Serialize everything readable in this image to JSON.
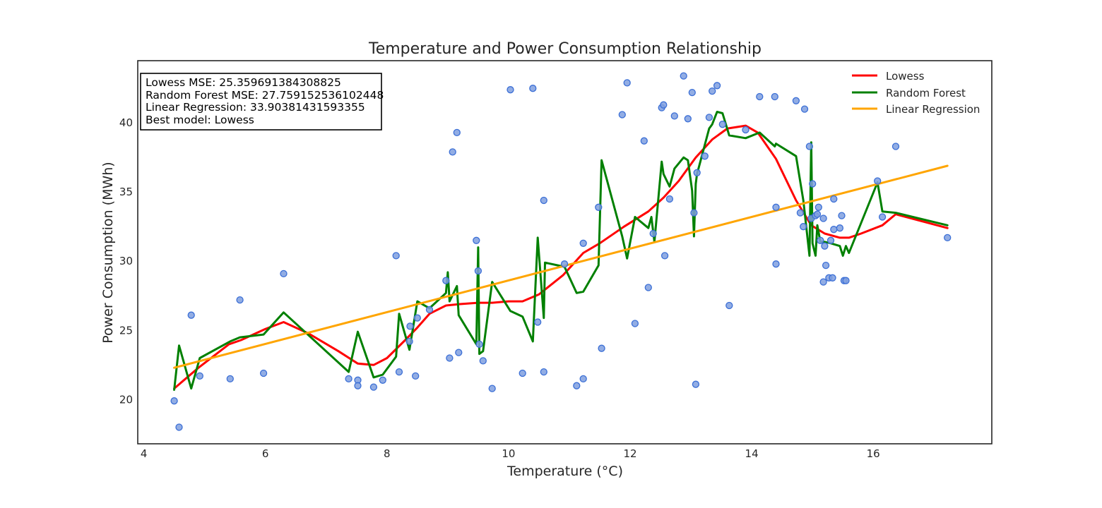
{
  "chart_data": {
    "type": "scatter",
    "title": "Temperature and Power Consumption Relationship",
    "xlabel": "Temperature (°C)",
    "ylabel": "Power Consumption (MWh)",
    "xlim": [
      3.9,
      17.95
    ],
    "ylim": [
      16.8,
      44.5
    ],
    "x_ticks": [
      4,
      6,
      8,
      10,
      12,
      14,
      16
    ],
    "y_ticks": [
      20,
      25,
      30,
      35,
      40
    ],
    "grid": false,
    "legend_position": "top-right",
    "stats_box": [
      "Lowess MSE: 25.359691384308825",
      "Random Forest MSE: 27.759152536102448",
      "Linear Regression: 33.90381431593355",
      "Best model: Lowess"
    ],
    "scatter": {
      "color": "#7f9fdf",
      "edge_color": "#3b6fd6",
      "points": [
        [
          4.5,
          19.9
        ],
        [
          4.58,
          18.0
        ],
        [
          4.78,
          26.1
        ],
        [
          4.92,
          21.7
        ],
        [
          5.42,
          21.5
        ],
        [
          5.58,
          27.2
        ],
        [
          5.97,
          21.9
        ],
        [
          6.3,
          29.1
        ],
        [
          7.37,
          21.5
        ],
        [
          7.52,
          21.4
        ],
        [
          7.52,
          21.0
        ],
        [
          7.78,
          20.9
        ],
        [
          7.93,
          21.4
        ],
        [
          8.15,
          30.4
        ],
        [
          8.2,
          22.0
        ],
        [
          8.37,
          24.2
        ],
        [
          8.38,
          25.3
        ],
        [
          8.47,
          21.7
        ],
        [
          8.5,
          25.9
        ],
        [
          8.7,
          26.5
        ],
        [
          8.97,
          28.6
        ],
        [
          9.03,
          23.0
        ],
        [
          9.08,
          37.9
        ],
        [
          9.15,
          39.3
        ],
        [
          9.18,
          23.4
        ],
        [
          9.47,
          31.5
        ],
        [
          9.5,
          29.3
        ],
        [
          9.52,
          24.0
        ],
        [
          9.58,
          22.8
        ],
        [
          9.73,
          20.8
        ],
        [
          10.03,
          42.4
        ],
        [
          10.23,
          21.9
        ],
        [
          10.4,
          42.5
        ],
        [
          10.48,
          25.6
        ],
        [
          10.58,
          34.4
        ],
        [
          10.58,
          22.0
        ],
        [
          10.92,
          29.8
        ],
        [
          11.12,
          21.0
        ],
        [
          11.23,
          21.5
        ],
        [
          11.23,
          31.3
        ],
        [
          11.48,
          33.9
        ],
        [
          11.53,
          23.7
        ],
        [
          11.87,
          40.6
        ],
        [
          11.95,
          42.9
        ],
        [
          12.08,
          25.5
        ],
        [
          12.23,
          38.7
        ],
        [
          12.3,
          28.1
        ],
        [
          12.38,
          32.0
        ],
        [
          12.52,
          41.1
        ],
        [
          12.55,
          41.3
        ],
        [
          12.57,
          30.4
        ],
        [
          12.65,
          34.5
        ],
        [
          12.73,
          40.5
        ],
        [
          12.88,
          43.4
        ],
        [
          12.95,
          40.3
        ],
        [
          13.02,
          42.2
        ],
        [
          13.05,
          33.5
        ],
        [
          13.08,
          21.1
        ],
        [
          13.1,
          36.4
        ],
        [
          13.23,
          37.6
        ],
        [
          13.3,
          40.4
        ],
        [
          13.35,
          42.3
        ],
        [
          13.43,
          42.7
        ],
        [
          13.52,
          39.9
        ],
        [
          13.63,
          26.8
        ],
        [
          13.9,
          39.5
        ],
        [
          14.13,
          41.9
        ],
        [
          14.38,
          41.9
        ],
        [
          14.4,
          29.8
        ],
        [
          14.4,
          33.9
        ],
        [
          14.73,
          41.6
        ],
        [
          14.8,
          33.5
        ],
        [
          14.85,
          32.5
        ],
        [
          14.87,
          41.0
        ],
        [
          14.95,
          38.3
        ],
        [
          14.98,
          33.1
        ],
        [
          15.0,
          35.6
        ],
        [
          15.05,
          33.3
        ],
        [
          15.08,
          33.4
        ],
        [
          15.1,
          33.9
        ],
        [
          15.13,
          31.5
        ],
        [
          15.18,
          33.1
        ],
        [
          15.18,
          28.5
        ],
        [
          15.2,
          31.1
        ],
        [
          15.22,
          29.7
        ],
        [
          15.27,
          28.8
        ],
        [
          15.3,
          31.5
        ],
        [
          15.33,
          28.8
        ],
        [
          15.35,
          34.5
        ],
        [
          15.35,
          32.3
        ],
        [
          15.45,
          32.4
        ],
        [
          15.48,
          33.3
        ],
        [
          15.52,
          28.6
        ],
        [
          15.55,
          28.6
        ],
        [
          16.07,
          35.8
        ],
        [
          16.15,
          33.2
        ],
        [
          16.37,
          38.3
        ],
        [
          17.22,
          31.7
        ]
      ]
    },
    "series": [
      {
        "name": "Lowess",
        "color": "#ff0000",
        "x": [
          4.5,
          4.9,
          5.4,
          5.6,
          6.0,
          6.3,
          6.7,
          7.2,
          7.52,
          7.78,
          8.0,
          8.3,
          8.5,
          8.7,
          8.97,
          9.2,
          9.5,
          9.73,
          10.0,
          10.23,
          10.5,
          10.9,
          11.23,
          11.5,
          11.9,
          12.3,
          12.55,
          12.8,
          13.08,
          13.35,
          13.6,
          13.9,
          14.1,
          14.4,
          14.73,
          14.98,
          15.2,
          15.45,
          15.6,
          15.8,
          16.15,
          16.37,
          17.22
        ],
        "y": [
          20.8,
          22.3,
          24.0,
          24.3,
          25.1,
          25.6,
          24.8,
          23.5,
          22.6,
          22.5,
          23.0,
          24.3,
          25.2,
          26.2,
          26.8,
          26.9,
          27.0,
          27.0,
          27.1,
          27.1,
          27.6,
          29.0,
          30.6,
          31.3,
          32.5,
          33.6,
          34.6,
          35.8,
          37.5,
          38.8,
          39.6,
          39.8,
          39.3,
          37.4,
          34.4,
          32.6,
          32.0,
          31.7,
          31.7,
          32.0,
          32.6,
          33.4,
          32.4
        ]
      },
      {
        "name": "Random Forest",
        "color": "#008000",
        "x": [
          4.5,
          4.58,
          4.78,
          4.92,
          5.42,
          5.58,
          5.97,
          6.3,
          7.37,
          7.52,
          7.78,
          7.93,
          8.15,
          8.2,
          8.37,
          8.5,
          8.7,
          8.97,
          9.0,
          9.03,
          9.15,
          9.18,
          9.47,
          9.5,
          9.52,
          9.58,
          9.73,
          10.03,
          10.23,
          10.4,
          10.48,
          10.58,
          10.6,
          10.92,
          11.12,
          11.23,
          11.48,
          11.53,
          11.87,
          11.95,
          12.08,
          12.3,
          12.35,
          12.4,
          12.52,
          12.55,
          12.65,
          12.73,
          12.88,
          12.95,
          13.02,
          13.05,
          13.08,
          13.1,
          13.3,
          13.35,
          13.43,
          13.52,
          13.63,
          13.9,
          14.13,
          14.38,
          14.4,
          14.73,
          14.85,
          14.95,
          14.98,
          15.0,
          15.05,
          15.08,
          15.13,
          15.2,
          15.3,
          15.45,
          15.5,
          15.55,
          15.6,
          16.07,
          16.15,
          16.37,
          17.22
        ],
        "y": [
          20.7,
          23.9,
          20.8,
          23.0,
          24.2,
          24.5,
          24.7,
          26.3,
          22.0,
          24.9,
          21.6,
          21.8,
          23.1,
          26.2,
          23.6,
          27.1,
          26.6,
          27.7,
          29.2,
          27.1,
          28.2,
          26.1,
          24.0,
          31.0,
          23.3,
          23.5,
          28.5,
          26.4,
          26.0,
          24.2,
          31.7,
          25.9,
          29.9,
          29.6,
          27.7,
          27.8,
          29.7,
          37.3,
          31.8,
          30.2,
          33.2,
          32.4,
          33.2,
          31.4,
          37.2,
          36.3,
          35.4,
          36.7,
          37.5,
          37.3,
          35.1,
          31.8,
          35.6,
          36.3,
          39.6,
          39.9,
          40.8,
          40.7,
          39.1,
          38.9,
          39.3,
          38.3,
          38.5,
          37.6,
          34.4,
          30.4,
          38.6,
          31.3,
          30.4,
          32.6,
          31.4,
          31.4,
          31.3,
          31.1,
          30.4,
          31.1,
          30.6,
          35.7,
          33.6,
          33.5,
          32.6
        ]
      },
      {
        "name": "Linear Regression",
        "color": "#ffa500",
        "x": [
          4.5,
          17.22
        ],
        "y": [
          22.3,
          36.9
        ]
      }
    ]
  }
}
